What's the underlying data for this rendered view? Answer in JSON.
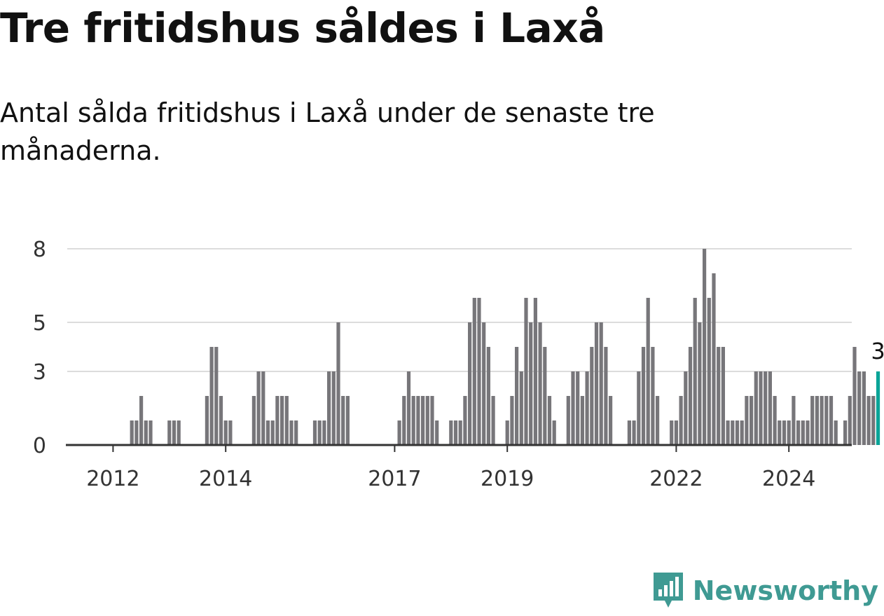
{
  "header": {
    "title": "Tre fritidshus såldes i Laxå",
    "subtitle": "Antal sålda fritidshus i Laxå under de senaste tre månaderna."
  },
  "brand": {
    "name": "Newsworthy",
    "color": "#3f9a93"
  },
  "chart_data": {
    "type": "bar",
    "title": "Tre fritidshus såldes i Laxå",
    "subtitle": "Antal sålda fritidshus i Laxå under de senaste tre månaderna.",
    "xlabel": "",
    "ylabel": "",
    "ylim": [
      0,
      9
    ],
    "yticks": [
      {
        "value": 0,
        "label": "0"
      },
      {
        "value": 3,
        "label": "3"
      },
      {
        "value": 5,
        "label": "5"
      },
      {
        "value": 8,
        "label": "8"
      }
    ],
    "xticks": [
      {
        "value": "2012-01",
        "label": "2012"
      },
      {
        "value": "2014-01",
        "label": "2014"
      },
      {
        "value": "2017-01",
        "label": "2017"
      },
      {
        "value": "2019-01",
        "label": "2019"
      },
      {
        "value": "2022-01",
        "label": "2022"
      },
      {
        "value": "2024-01",
        "label": "2024"
      }
    ],
    "start": "2011-04",
    "grid": true,
    "colors": {
      "bar": "#77767a",
      "highlight": "#0aa498",
      "grid": "#dcdcdc",
      "axis": "#333333"
    },
    "highlight_label": "3",
    "series": [
      {
        "values": [
          0,
          0,
          0,
          0,
          0,
          0,
          0,
          0,
          0,
          0,
          0,
          0,
          0,
          1,
          1,
          2,
          1,
          1,
          0,
          0,
          0,
          1,
          1,
          1,
          0,
          0,
          0,
          0,
          0,
          2,
          4,
          4,
          2,
          1,
          1,
          0,
          0,
          0,
          0,
          2,
          3,
          3,
          1,
          1,
          2,
          2,
          2,
          1,
          1,
          0,
          0,
          0,
          1,
          1,
          1,
          3,
          3,
          5,
          2,
          2,
          0,
          0,
          0,
          0,
          0,
          0,
          0,
          0,
          0,
          0,
          1,
          2,
          3,
          2,
          2,
          2,
          2,
          2,
          1,
          0,
          0,
          1,
          1,
          1,
          2,
          5,
          6,
          6,
          5,
          4,
          2,
          0,
          0,
          1,
          2,
          4,
          3,
          6,
          5,
          6,
          5,
          4,
          2,
          1,
          0,
          0,
          2,
          3,
          3,
          2,
          3,
          4,
          5,
          5,
          4,
          2,
          0,
          0,
          0,
          1,
          1,
          3,
          4,
          6,
          4,
          2,
          0,
          0,
          1,
          1,
          2,
          3,
          4,
          6,
          5,
          8,
          6,
          7,
          4,
          4,
          1,
          1,
          1,
          1,
          2,
          2,
          3,
          3,
          3,
          3,
          2,
          1,
          1,
          1,
          2,
          1,
          1,
          1,
          2,
          2,
          2,
          2,
          2,
          1,
          0,
          1,
          2,
          4,
          3,
          3,
          2,
          2,
          3
        ]
      }
    ]
  }
}
